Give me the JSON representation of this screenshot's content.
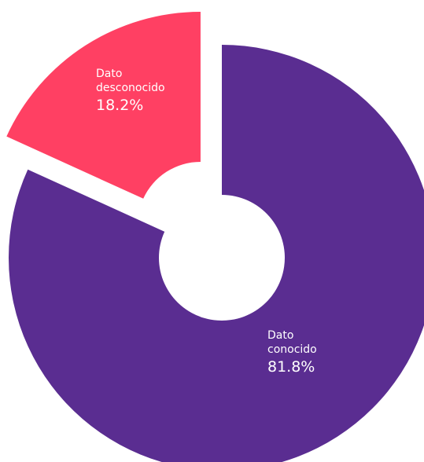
{
  "chart_data": {
    "type": "pie",
    "categories": [
      "Dato conocido",
      "Dato desconocido"
    ],
    "values": [
      81.8,
      18.2
    ],
    "value_labels": [
      "81.8%",
      "18.2%"
    ],
    "colors": [
      "#5a2d91",
      "#ff4063"
    ],
    "explode": [
      false,
      true
    ]
  }
}
